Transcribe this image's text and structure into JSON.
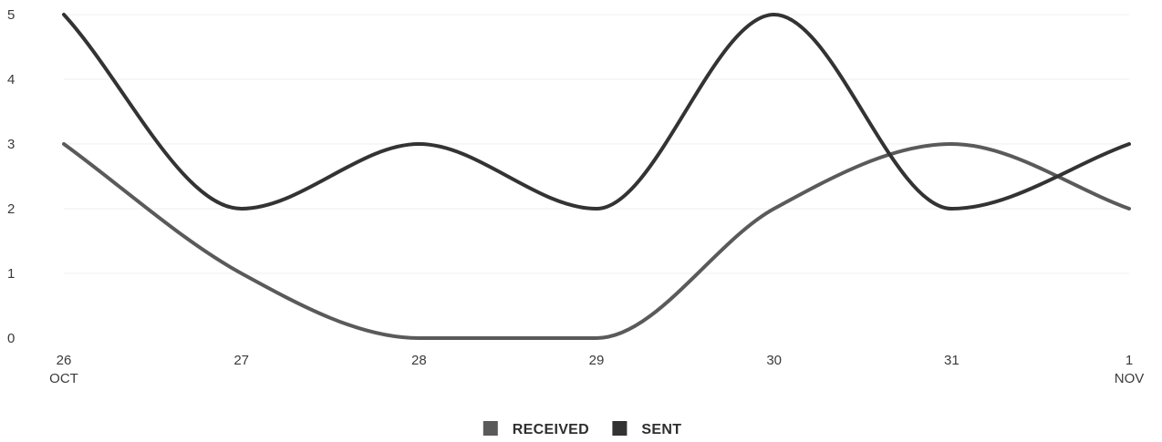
{
  "chart_data": {
    "type": "line",
    "title": "",
    "xlabel": "",
    "ylabel": "",
    "categories": [
      {
        "day": "26",
        "month": "OCT"
      },
      {
        "day": "27",
        "month": ""
      },
      {
        "day": "28",
        "month": ""
      },
      {
        "day": "29",
        "month": ""
      },
      {
        "day": "30",
        "month": ""
      },
      {
        "day": "31",
        "month": ""
      },
      {
        "day": "1",
        "month": "NOV"
      }
    ],
    "y_ticks": [
      "0",
      "1",
      "2",
      "3",
      "4",
      "5"
    ],
    "ylim": [
      0,
      5
    ],
    "grid": true,
    "smooth": true,
    "legend_position": "bottom-center",
    "series": [
      {
        "name": "RECEIVED",
        "color": "#5a5a5a",
        "values": [
          3,
          1,
          0,
          0,
          2,
          3,
          2
        ]
      },
      {
        "name": "SENT",
        "color": "#333333",
        "values": [
          5,
          2,
          3,
          2,
          5,
          2,
          3
        ]
      }
    ]
  }
}
